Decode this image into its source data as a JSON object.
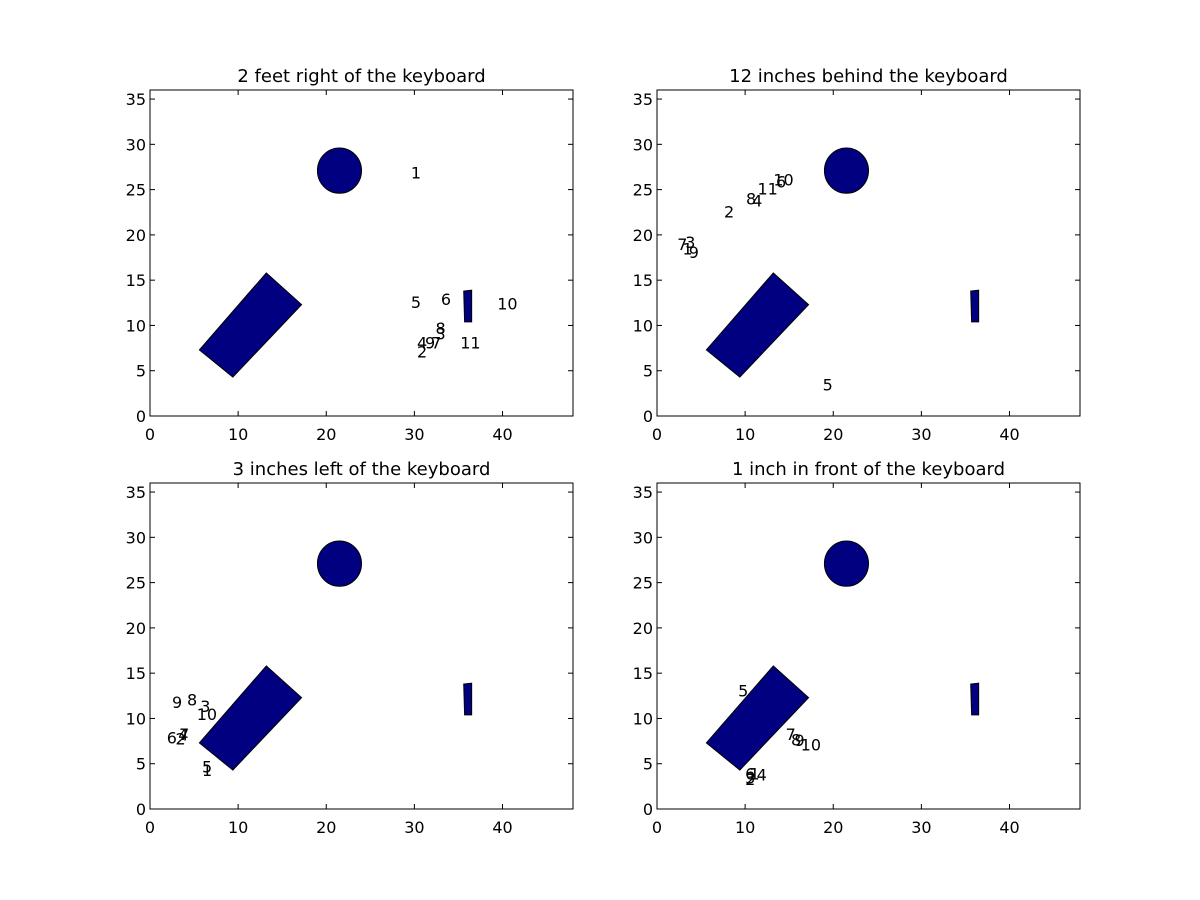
{
  "colors": {
    "object_fill": "#000080",
    "frame": "#000000",
    "background": "#ffffff"
  },
  "objects": {
    "circle": {
      "cx": 21.5,
      "cy": 27.1,
      "r": 2.5
    },
    "keyboard": [
      [
        5.6,
        7.3
      ],
      [
        9.4,
        4.3
      ],
      [
        17.2,
        12.3
      ],
      [
        13.2,
        15.8
      ]
    ],
    "small_item": [
      [
        35.7,
        10.4
      ],
      [
        36.5,
        10.4
      ],
      [
        36.5,
        13.9
      ],
      [
        35.6,
        13.8
      ]
    ]
  },
  "chart_data": [
    {
      "type": "scatter",
      "title": "2 feet right of the keyboard",
      "xlim": [
        0,
        48
      ],
      "ylim": [
        0,
        36
      ],
      "xticks": [
        0,
        10,
        20,
        30,
        40
      ],
      "yticks": [
        0,
        5,
        10,
        15,
        20,
        25,
        30,
        35
      ],
      "points": [
        {
          "label": "1",
          "x": 29.6,
          "y": 26.9
        },
        {
          "label": "2",
          "x": 30.3,
          "y": 7.1
        },
        {
          "label": "3",
          "x": 32.4,
          "y": 9.1
        },
        {
          "label": "4",
          "x": 30.3,
          "y": 8.1
        },
        {
          "label": "5",
          "x": 29.6,
          "y": 12.6
        },
        {
          "label": "6",
          "x": 33.0,
          "y": 12.9
        },
        {
          "label": "7",
          "x": 31.9,
          "y": 8.1
        },
        {
          "label": "8",
          "x": 32.4,
          "y": 9.7
        },
        {
          "label": "9",
          "x": 31.2,
          "y": 8.1
        },
        {
          "label": "10",
          "x": 39.4,
          "y": 12.4
        },
        {
          "label": "11",
          "x": 35.2,
          "y": 8.1
        }
      ]
    },
    {
      "type": "scatter",
      "title": "12 inches behind the keyboard",
      "xlim": [
        0,
        48
      ],
      "ylim": [
        0,
        36
      ],
      "xticks": [
        0,
        10,
        20,
        30,
        40
      ],
      "yticks": [
        0,
        5,
        10,
        15,
        20,
        25,
        30,
        35
      ],
      "points": [
        {
          "label": "1",
          "x": 2.9,
          "y": 18.5
        },
        {
          "label": "2",
          "x": 7.6,
          "y": 22.6
        },
        {
          "label": "3",
          "x": 3.2,
          "y": 19.2
        },
        {
          "label": "4",
          "x": 10.8,
          "y": 23.8
        },
        {
          "label": "5",
          "x": 18.8,
          "y": 3.5
        },
        {
          "label": "6",
          "x": 13.5,
          "y": 25.9
        },
        {
          "label": "7",
          "x": 2.3,
          "y": 19.0
        },
        {
          "label": "8",
          "x": 10.1,
          "y": 24.0
        },
        {
          "label": "9",
          "x": 3.6,
          "y": 18.1
        },
        {
          "label": "10",
          "x": 13.2,
          "y": 26.1
        },
        {
          "label": "11",
          "x": 11.4,
          "y": 25.1
        }
      ]
    },
    {
      "type": "scatter",
      "title": "3 inches left of the keyboard",
      "xlim": [
        0,
        48
      ],
      "ylim": [
        0,
        36
      ],
      "xticks": [
        0,
        10,
        20,
        30,
        40
      ],
      "yticks": [
        0,
        5,
        10,
        15,
        20,
        25,
        30,
        35
      ],
      "points": [
        {
          "label": "1",
          "x": 5.9,
          "y": 4.3
        },
        {
          "label": "2",
          "x": 2.9,
          "y": 7.8
        },
        {
          "label": "3",
          "x": 5.7,
          "y": 11.4
        },
        {
          "label": "4",
          "x": 3.2,
          "y": 8.2
        },
        {
          "label": "5",
          "x": 5.9,
          "y": 4.7
        },
        {
          "label": "6",
          "x": 1.9,
          "y": 7.9
        },
        {
          "label": "7",
          "x": 3.3,
          "y": 8.3
        },
        {
          "label": "8",
          "x": 4.2,
          "y": 12.1
        },
        {
          "label": "9",
          "x": 2.5,
          "y": 11.8
        },
        {
          "label": "10",
          "x": 5.3,
          "y": 10.5
        }
      ]
    },
    {
      "type": "scatter",
      "title": "1 inch in front of the keyboard",
      "xlim": [
        0,
        48
      ],
      "ylim": [
        0,
        36
      ],
      "xticks": [
        0,
        10,
        20,
        30,
        40
      ],
      "yticks": [
        0,
        5,
        10,
        15,
        20,
        25,
        30,
        35
      ],
      "points": [
        {
          "label": "1",
          "x": 10.5,
          "y": 3.9
        },
        {
          "label": "2",
          "x": 10.0,
          "y": 3.3
        },
        {
          "label": "3",
          "x": 10.0,
          "y": 3.5
        },
        {
          "label": "4",
          "x": 11.3,
          "y": 3.8
        },
        {
          "label": "5",
          "x": 9.2,
          "y": 13.1
        },
        {
          "label": "6",
          "x": 10.0,
          "y": 3.9
        },
        {
          "label": "7",
          "x": 14.6,
          "y": 8.3
        },
        {
          "label": "8",
          "x": 15.2,
          "y": 7.7
        },
        {
          "label": "9",
          "x": 15.6,
          "y": 7.6
        },
        {
          "label": "10",
          "x": 16.3,
          "y": 7.1
        }
      ]
    }
  ]
}
